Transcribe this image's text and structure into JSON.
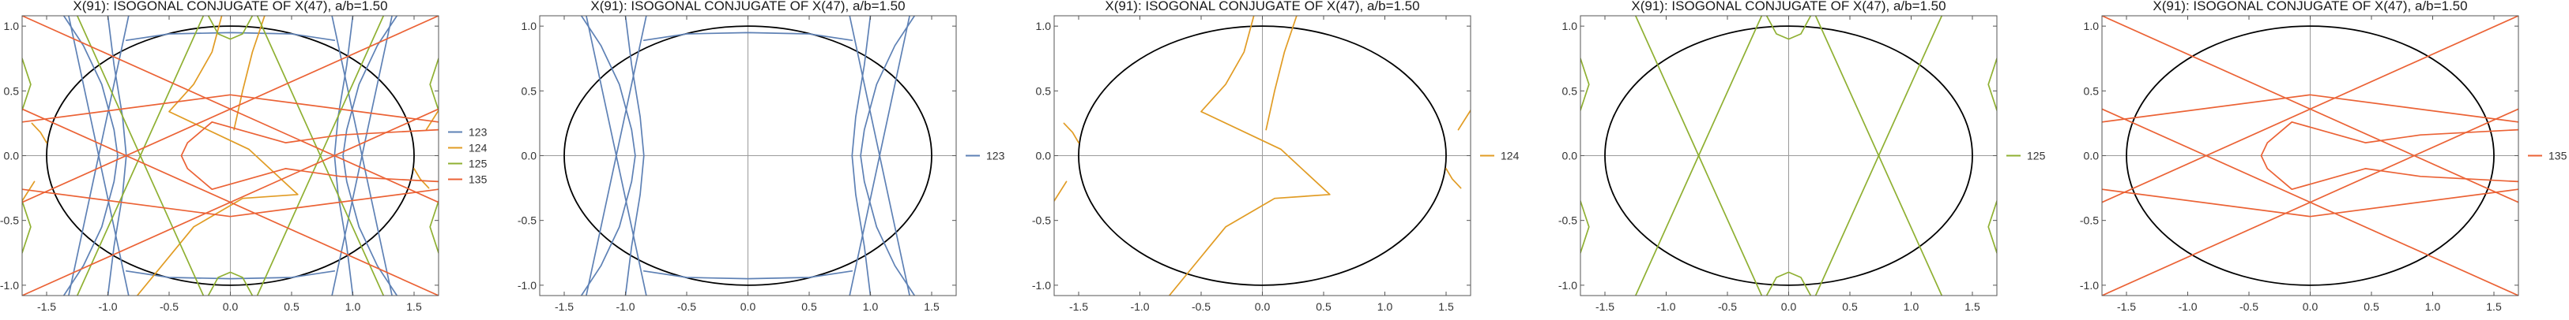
{
  "colors": {
    "123": "#5e81b5",
    "124": "#e19c24",
    "125": "#8fb032",
    "135": "#eb6235",
    "ellipse": "#000000",
    "axis": "#9a9a9a",
    "frame": "#555555"
  },
  "chart_data": [
    {
      "type": "line",
      "title": "X(91): ISOGONAL CONJUGATE OF X(47), a/b=1.50",
      "xlim": [
        -1.7,
        1.7
      ],
      "ylim": [
        -1.08,
        1.08
      ],
      "xticks": [
        "-1.5",
        "-1.0",
        "-0.5",
        "0.0",
        "0.5",
        "1.0",
        "1.5"
      ],
      "yticks": [
        "-1.0",
        "-0.5",
        "0.0",
        "0.5",
        "1.0"
      ],
      "legend": [
        "123",
        "124",
        "125",
        "135"
      ],
      "legend_position": "right",
      "ellipse": {
        "a": 1.5,
        "b": 1.0
      }
    },
    {
      "type": "line",
      "title": "X(91): ISOGONAL CONJUGATE OF X(47), a/b=1.50",
      "xlim": [
        -1.7,
        1.7
      ],
      "ylim": [
        -1.08,
        1.08
      ],
      "xticks": [
        "-1.5",
        "-1.0",
        "-0.5",
        "0.0",
        "0.5",
        "1.0",
        "1.5"
      ],
      "yticks": [
        "-1.0",
        "-0.5",
        "0.0",
        "0.5",
        "1.0"
      ],
      "legend": [
        "123"
      ],
      "legend_position": "right",
      "ellipse": {
        "a": 1.5,
        "b": 1.0
      }
    },
    {
      "type": "line",
      "title": "X(91): ISOGONAL CONJUGATE OF X(47), a/b=1.50",
      "xlim": [
        -1.7,
        1.7
      ],
      "ylim": [
        -1.08,
        1.08
      ],
      "xticks": [
        "-1.5",
        "-1.0",
        "-0.5",
        "0.0",
        "0.5",
        "1.0",
        "1.5"
      ],
      "yticks": [
        "-1.0",
        "-0.5",
        "0.0",
        "0.5",
        "1.0"
      ],
      "legend": [
        "124"
      ],
      "legend_position": "right",
      "ellipse": {
        "a": 1.5,
        "b": 1.0
      }
    },
    {
      "type": "line",
      "title": "X(91): ISOGONAL CONJUGATE OF X(47), a/b=1.50",
      "xlim": [
        -1.7,
        1.7
      ],
      "ylim": [
        -1.08,
        1.08
      ],
      "xticks": [
        "-1.5",
        "-1.0",
        "-0.5",
        "0.0",
        "0.5",
        "1.0",
        "1.5"
      ],
      "yticks": [
        "-1.0",
        "-0.5",
        "0.0",
        "0.5",
        "1.0"
      ],
      "legend": [
        "125"
      ],
      "legend_position": "right",
      "ellipse": {
        "a": 1.5,
        "b": 1.0
      }
    },
    {
      "type": "line",
      "title": "X(91): ISOGONAL CONJUGATE OF X(47), a/b=1.50",
      "xlim": [
        -1.7,
        1.7
      ],
      "ylim": [
        -1.08,
        1.08
      ],
      "xticks": [
        "-1.5",
        "-1.0",
        "-0.5",
        "0.0",
        "0.5",
        "1.0",
        "1.5"
      ],
      "yticks": [
        "-1.0",
        "-0.5",
        "0.0",
        "0.5",
        "1.0"
      ],
      "legend": [
        "135"
      ],
      "legend_position": "right",
      "ellipse": {
        "a": 1.5,
        "b": 1.0
      }
    }
  ],
  "curves": {
    "123": [
      [
        [
          -1.36,
          -1.08
        ],
        [
          -1.2,
          -0.85
        ],
        [
          -1.05,
          -0.55
        ],
        [
          -0.95,
          -0.2
        ],
        [
          -0.92,
          0.0
        ],
        [
          -0.95,
          0.2
        ],
        [
          -1.05,
          0.55
        ],
        [
          -1.2,
          0.85
        ],
        [
          -1.36,
          1.08
        ]
      ],
      [
        [
          -1.0,
          -1.08
        ],
        [
          -0.95,
          -0.7
        ],
        [
          -0.88,
          -0.3
        ],
        [
          -0.85,
          0.0
        ],
        [
          -0.88,
          0.3
        ],
        [
          -0.95,
          0.7
        ],
        [
          -1.0,
          1.08
        ]
      ],
      [
        [
          1.36,
          -1.08
        ],
        [
          1.2,
          -0.85
        ],
        [
          1.05,
          -0.55
        ],
        [
          0.95,
          -0.2
        ],
        [
          0.92,
          0.0
        ],
        [
          0.95,
          0.2
        ],
        [
          1.05,
          0.55
        ],
        [
          1.2,
          0.85
        ],
        [
          1.36,
          1.08
        ]
      ],
      [
        [
          1.0,
          -1.08
        ],
        [
          0.95,
          -0.7
        ],
        [
          0.88,
          -0.3
        ],
        [
          0.85,
          0.0
        ],
        [
          0.88,
          0.3
        ],
        [
          0.95,
          0.7
        ],
        [
          1.0,
          1.08
        ]
      ],
      [
        [
          -1.32,
          1.08
        ],
        [
          -0.83,
          -1.08
        ]
      ],
      [
        [
          -0.83,
          1.08
        ],
        [
          -1.32,
          -1.08
        ]
      ],
      [
        [
          1.32,
          1.08
        ],
        [
          0.83,
          -1.08
        ]
      ],
      [
        [
          0.83,
          1.08
        ],
        [
          1.32,
          -1.08
        ]
      ],
      [
        [
          -0.85,
          0.89
        ],
        [
          -0.5,
          0.94
        ],
        [
          0.0,
          0.95
        ],
        [
          0.5,
          0.94
        ],
        [
          0.85,
          0.89
        ]
      ],
      [
        [
          -0.85,
          -0.89
        ],
        [
          -0.5,
          -0.94
        ],
        [
          0.0,
          -0.95
        ],
        [
          0.5,
          -0.94
        ],
        [
          0.85,
          -0.89
        ]
      ]
    ],
    "124": [
      [
        [
          -0.76,
          -1.08
        ],
        [
          -0.3,
          -0.55
        ],
        [
          0.1,
          -0.33
        ],
        [
          0.55,
          -0.3
        ],
        [
          0.15,
          0.05
        ],
        [
          -0.5,
          0.34
        ],
        [
          -0.3,
          0.55
        ],
        [
          -0.15,
          0.8
        ],
        [
          -0.07,
          1.08
        ]
      ],
      [
        [
          0.28,
          1.08
        ],
        [
          0.18,
          0.8
        ],
        [
          0.1,
          0.5
        ],
        [
          0.03,
          0.2
        ]
      ],
      [
        [
          1.62,
          -0.25
        ],
        [
          1.55,
          -0.18
        ],
        [
          1.5,
          -0.1
        ]
      ],
      [
        [
          -1.62,
          0.25
        ],
        [
          -1.55,
          0.18
        ],
        [
          -1.5,
          0.1
        ]
      ],
      [
        [
          1.7,
          0.35
        ],
        [
          1.6,
          0.2
        ]
      ],
      [
        [
          -1.7,
          -0.35
        ],
        [
          -1.6,
          -0.2
        ]
      ]
    ],
    "125": [
      [
        [
          -1.25,
          1.08
        ],
        [
          -0.22,
          -1.08
        ]
      ],
      [
        [
          1.25,
          1.08
        ],
        [
          0.22,
          -1.08
        ]
      ],
      [
        [
          -1.25,
          -1.08
        ],
        [
          -0.22,
          1.08
        ]
      ],
      [
        [
          1.25,
          -1.08
        ],
        [
          0.22,
          1.08
        ]
      ],
      [
        [
          -0.18,
          1.08
        ],
        [
          -0.1,
          0.94
        ],
        [
          0.0,
          0.9
        ],
        [
          0.1,
          0.94
        ],
        [
          0.18,
          1.08
        ]
      ],
      [
        [
          -0.18,
          -1.08
        ],
        [
          -0.1,
          -0.94
        ],
        [
          0.0,
          -0.9
        ],
        [
          0.1,
          -0.94
        ],
        [
          0.18,
          -1.08
        ]
      ],
      [
        [
          -1.7,
          0.75
        ],
        [
          -1.63,
          0.55
        ],
        [
          -1.7,
          0.35
        ]
      ],
      [
        [
          1.7,
          0.75
        ],
        [
          1.63,
          0.55
        ],
        [
          1.7,
          0.35
        ]
      ],
      [
        [
          -1.7,
          -0.75
        ],
        [
          -1.63,
          -0.55
        ],
        [
          -1.7,
          -0.35
        ]
      ],
      [
        [
          1.7,
          -0.75
        ],
        [
          1.63,
          -0.55
        ],
        [
          1.7,
          -0.35
        ]
      ]
    ],
    "135": [
      [
        [
          -1.7,
          -0.36
        ],
        [
          1.7,
          1.08
        ]
      ],
      [
        [
          -1.7,
          0.36
        ],
        [
          1.7,
          -1.08
        ]
      ],
      [
        [
          -1.7,
          1.08
        ],
        [
          1.7,
          -0.36
        ]
      ],
      [
        [
          -1.7,
          -1.08
        ],
        [
          1.7,
          0.36
        ]
      ],
      [
        [
          -1.7,
          0.26
        ],
        [
          0.0,
          0.47
        ],
        [
          1.7,
          0.26
        ]
      ],
      [
        [
          -1.7,
          -0.26
        ],
        [
          0.0,
          -0.47
        ],
        [
          1.7,
          -0.26
        ]
      ],
      [
        [
          1.7,
          0.2
        ],
        [
          0.9,
          0.16
        ],
        [
          0.45,
          0.1
        ],
        [
          -0.15,
          0.26
        ],
        [
          -0.35,
          0.1
        ],
        [
          -0.4,
          0.0
        ],
        [
          -0.35,
          -0.1
        ],
        [
          -0.15,
          -0.26
        ],
        [
          0.45,
          -0.1
        ],
        [
          0.9,
          -0.16
        ],
        [
          1.7,
          -0.2
        ]
      ]
    ]
  }
}
